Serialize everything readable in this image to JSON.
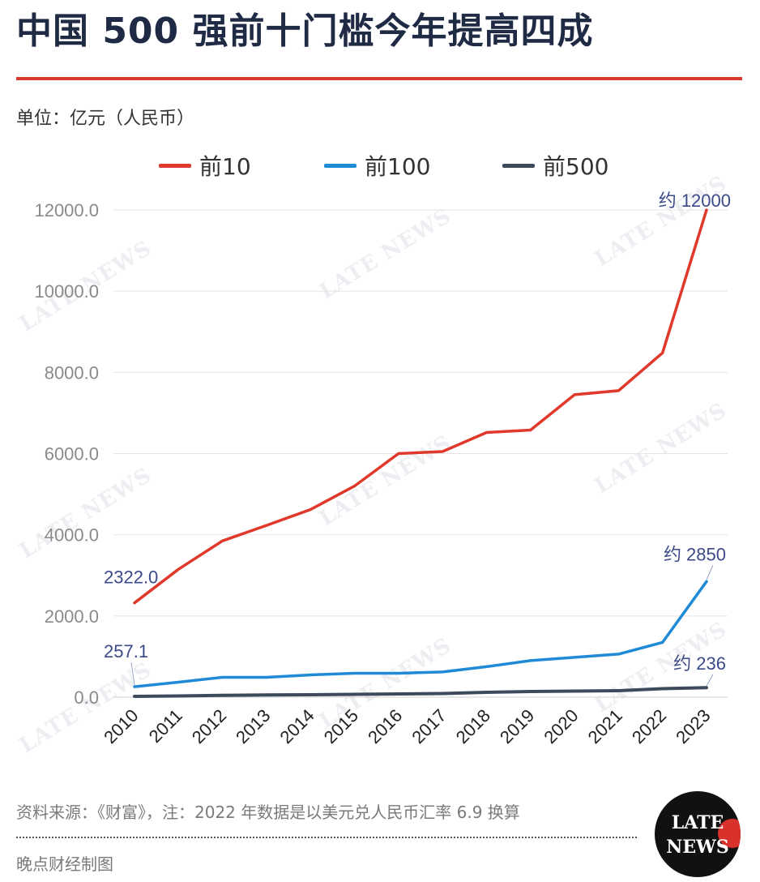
{
  "header": {
    "title": "中国 500 强前十门槛今年提高四成",
    "unit": "单位：亿元（人民币）"
  },
  "colors": {
    "accent": "#d93a2b",
    "series_top10": "#e0392b",
    "series_top100": "#1f8ad6",
    "series_top500": "#3d4a5c",
    "annotation": "#3c4a8a"
  },
  "chart_data": {
    "type": "line",
    "x": [
      "2010",
      "2011",
      "2012",
      "2013",
      "2014",
      "2015",
      "2016",
      "2017",
      "2018",
      "2019",
      "2020",
      "2021",
      "2022",
      "2023"
    ],
    "series": [
      {
        "name": "前10",
        "values": [
          2322,
          3150,
          3850,
          4230,
          4620,
          5200,
          6000,
          6050,
          6520,
          6580,
          7450,
          7550,
          8480,
          12000
        ]
      },
      {
        "name": "前100",
        "values": [
          257.1,
          370,
          490,
          490,
          550,
          590,
          590,
          620,
          750,
          900,
          980,
          1060,
          1350,
          2850
        ]
      },
      {
        "name": "前500",
        "values": [
          20,
          30,
          45,
          55,
          60,
          70,
          80,
          90,
          120,
          140,
          150,
          160,
          210,
          236
        ]
      }
    ],
    "y_ticks": [
      "0.0",
      "2000.0",
      "4000.0",
      "6000.0",
      "8000.0",
      "10000.0",
      "12000.0"
    ],
    "ylim": [
      0,
      12000
    ],
    "grid": true,
    "legend_position": "top",
    "annotations": [
      {
        "series": 0,
        "index": 0,
        "text": "2322.0"
      },
      {
        "series": 0,
        "index": 13,
        "text": "约 12000"
      },
      {
        "series": 1,
        "index": 0,
        "text": "257.1"
      },
      {
        "series": 1,
        "index": 13,
        "text": "约 2850"
      },
      {
        "series": 2,
        "index": 13,
        "text": "约 236"
      }
    ]
  },
  "watermark": {
    "text": "LATE NEWS"
  },
  "footer": {
    "source": "资料来源：《财富》，注：2022 年数据是以美元兑人民币汇率 6.9 换算",
    "credit": "晚点财经制图"
  },
  "logo": {
    "line1": "LATE",
    "line2": "NEWS"
  }
}
